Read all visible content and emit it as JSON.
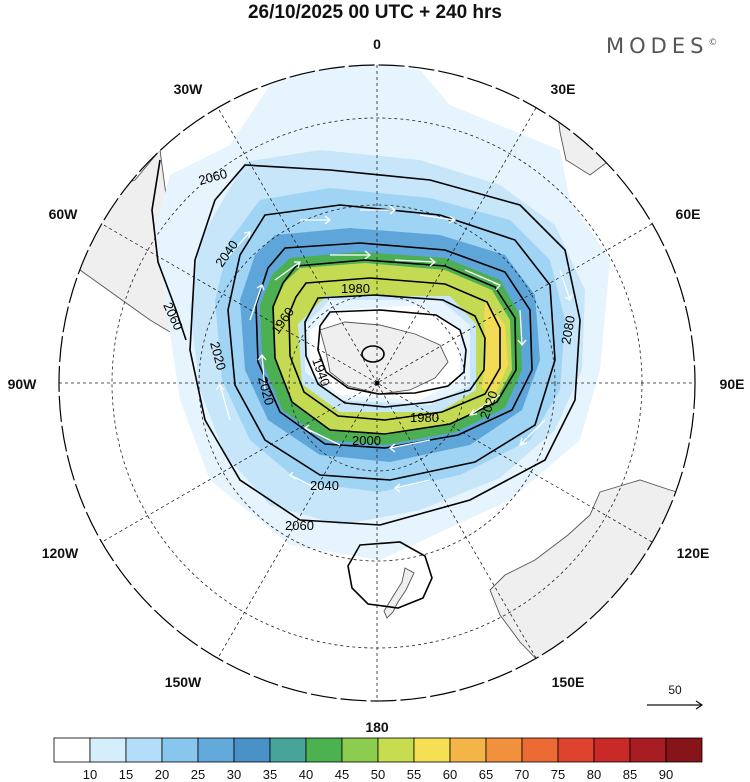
{
  "title": "26/10/2025  00 UTC  + 240 hrs",
  "brand": "MODES",
  "brand_mark": "©",
  "longitude_labels": {
    "lon0": "0",
    "lon30e": "30E",
    "lon60e": "60E",
    "lon90e": "90E",
    "lon120e": "120E",
    "lon150e": "150E",
    "lon180": "180",
    "lon150w": "150W",
    "lon120w": "120W",
    "lon90w": "90W",
    "lon60w": "60W",
    "lon30w": "30W"
  },
  "contour_labels": {
    "c2060a": "2060",
    "c2040a": "2040",
    "c2060b": "2060",
    "c2020a": "2020",
    "c1980a": "1980",
    "c1960a": "1960",
    "c1940": "1940",
    "c2020b": "2020",
    "c2000": "2000",
    "c1980b": "1980",
    "c2020c": "2020",
    "c2040b": "2040",
    "c2060c": "2060",
    "c2080": "2080"
  },
  "vector_reference": {
    "label": "50"
  },
  "colorbar": {
    "labels": [
      "10",
      "15",
      "20",
      "25",
      "30",
      "35",
      "40",
      "45",
      "50",
      "55",
      "60",
      "65",
      "70",
      "75",
      "80",
      "85",
      "90"
    ],
    "colors": [
      "#ffffff",
      "#d4eefb",
      "#b2defa",
      "#89c6ed",
      "#62a9dc",
      "#4a91c8",
      "#47a49a",
      "#4bb24f",
      "#8ccc4e",
      "#c8dc50",
      "#f5df55",
      "#f4b548",
      "#f1903d",
      "#ec6b35",
      "#e0432d",
      "#c92a27",
      "#a71d23",
      "#851518"
    ]
  }
}
